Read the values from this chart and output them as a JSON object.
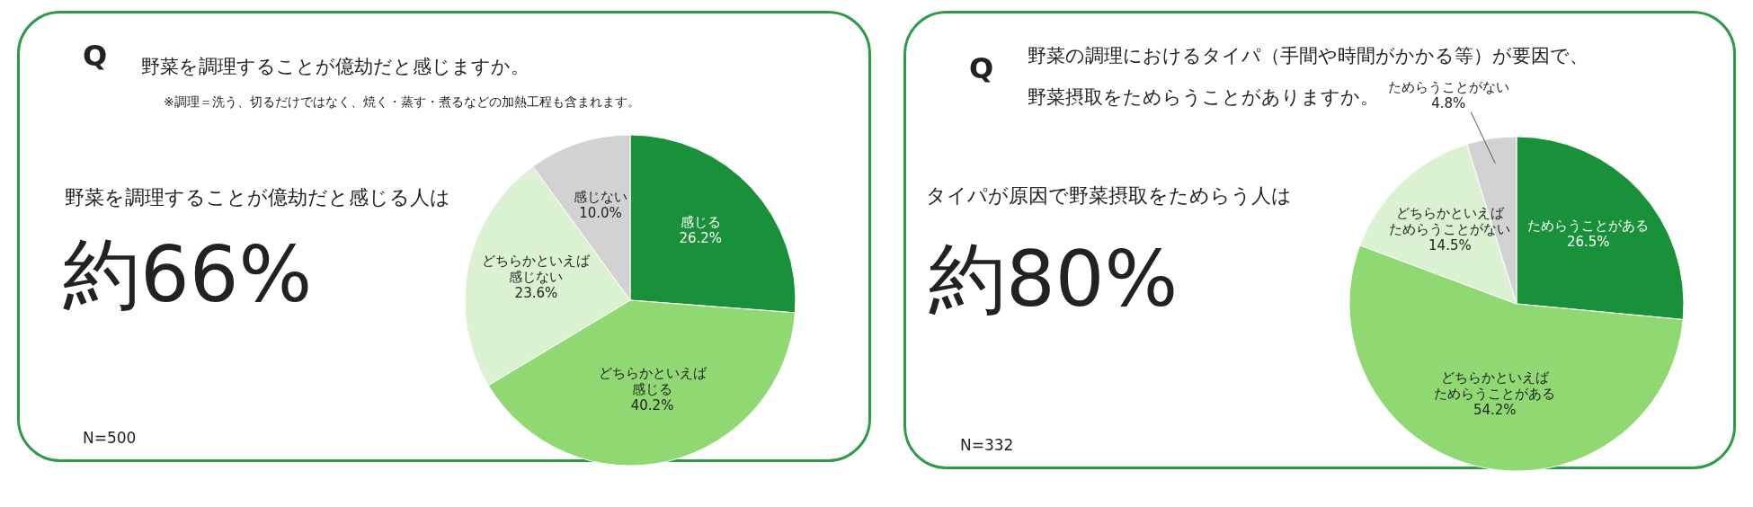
{
  "chart_data": [
    {
      "type": "pie",
      "title": "野菜を調理することが億劫だと感じますか。",
      "subtitle": "※調理＝洗う、切るだけではなく、焼く・蒸す・煮るなどの加熱工程も含まれます。",
      "categories": [
        "感じる",
        "どちらかといえば感じる",
        "どちらかといえば感じない",
        "感じない"
      ],
      "values": [
        26.2,
        40.2,
        23.6,
        10.0
      ],
      "value_labels": [
        "26.2%",
        "40.2%",
        "23.6%",
        "10.0%"
      ],
      "colors": [
        "#19913b",
        "#8fd872",
        "#dbf2d2",
        "#d2d2d2"
      ],
      "annotations": [
        "Q",
        "野菜を調理することが億劫だと感じる人は",
        "約66%",
        "N=500"
      ]
    },
    {
      "type": "pie",
      "title": "野菜の調理におけるタイパ（手間や時間がかかる等）が要因で、野菜摂取をためらうことがありますか。",
      "categories": [
        "ためらうことがある",
        "どちらかといえばためらうことがある",
        "どちらかといえばためらうことがない",
        "ためらうことがない"
      ],
      "values": [
        26.5,
        54.2,
        14.5,
        4.8
      ],
      "value_labels": [
        "26.5%",
        "54.2%",
        "14.5%",
        "4.8%"
      ],
      "colors": [
        "#19913b",
        "#8fd872",
        "#dbf2d2",
        "#d2d2d2"
      ],
      "annotations": [
        "Q",
        "タイパが原因で野菜摂取をためらう人は",
        "約80%",
        "N=332"
      ]
    }
  ]
}
